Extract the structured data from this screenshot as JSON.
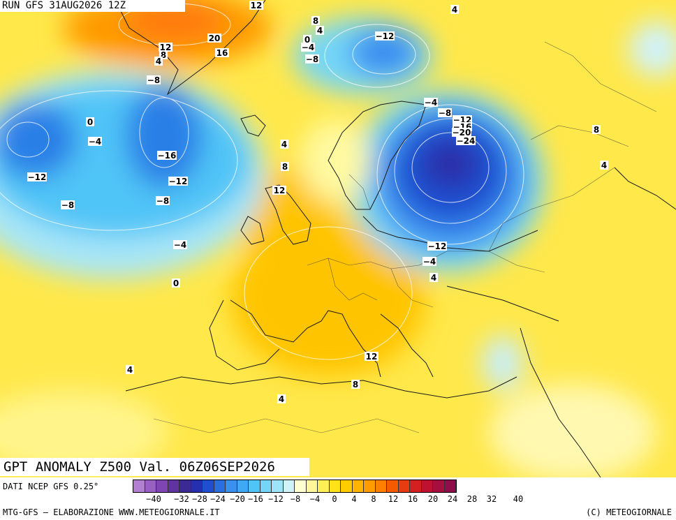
{
  "header": {
    "run": "RUN GFS 31AUG2026 12Z"
  },
  "title": "GPT ANOMALY Z500 Val. 06Z06SEP2026",
  "footer": {
    "data_source": "DATI NCEP GFS 0.25°",
    "credit_left": "MTG-GFS — ELABORAZIONE WWW.METEOGIORNALE.IT",
    "credit_right": "(C) METEOGIORNALE"
  },
  "scale": {
    "colors": [
      "#b27fd1",
      "#9a5fc4",
      "#7f45b3",
      "#60339e",
      "#3b2a93",
      "#2530b0",
      "#1f4fd0",
      "#2a6fe0",
      "#3a8ff0",
      "#3fa9f5",
      "#4fc4f7",
      "#74d6f7",
      "#9ee4f7",
      "#d0f2f9",
      "#ffffd0",
      "#fff59a",
      "#ffee55",
      "#ffe21a",
      "#ffcc00",
      "#ffb400",
      "#ff9c00",
      "#ff7f00",
      "#f55a00",
      "#e83b0f",
      "#d4201e",
      "#be1230",
      "#a50f3e",
      "#8e0d4a"
    ],
    "ticks": [
      "−40",
      "−32",
      "−28",
      "−24",
      "−20",
      "−16",
      "−12",
      "−8",
      "−4",
      "0",
      "4",
      "8",
      "12",
      "16",
      "20",
      "24",
      "28",
      "32",
      "40"
    ]
  },
  "contour_labels": [
    {
      "text": "12"
    },
    {
      "text": "8"
    },
    {
      "text": "4"
    },
    {
      "text": "0"
    },
    {
      "text": "4"
    },
    {
      "text": "−12"
    },
    {
      "text": "−4"
    },
    {
      "text": "−8"
    },
    {
      "text": "20"
    },
    {
      "text": "16"
    },
    {
      "text": "12"
    },
    {
      "text": "8"
    },
    {
      "text": "4"
    },
    {
      "text": "−8"
    },
    {
      "text": "0"
    },
    {
      "text": "−4"
    },
    {
      "text": "−16"
    },
    {
      "text": "−12"
    },
    {
      "text": "−12"
    },
    {
      "text": "−8"
    },
    {
      "text": "−8"
    },
    {
      "text": "−4"
    },
    {
      "text": "0"
    },
    {
      "text": "4"
    },
    {
      "text": "8"
    },
    {
      "text": "12"
    },
    {
      "text": "−4"
    },
    {
      "text": "−8"
    },
    {
      "text": "−12"
    },
    {
      "text": "−16"
    },
    {
      "text": "−20"
    },
    {
      "text": "−24"
    },
    {
      "text": "8"
    },
    {
      "text": "4"
    },
    {
      "text": "−12"
    },
    {
      "text": "−4"
    },
    {
      "text": "4"
    },
    {
      "text": "4"
    },
    {
      "text": "12"
    },
    {
      "text": "8"
    },
    {
      "text": "4"
    }
  ]
}
